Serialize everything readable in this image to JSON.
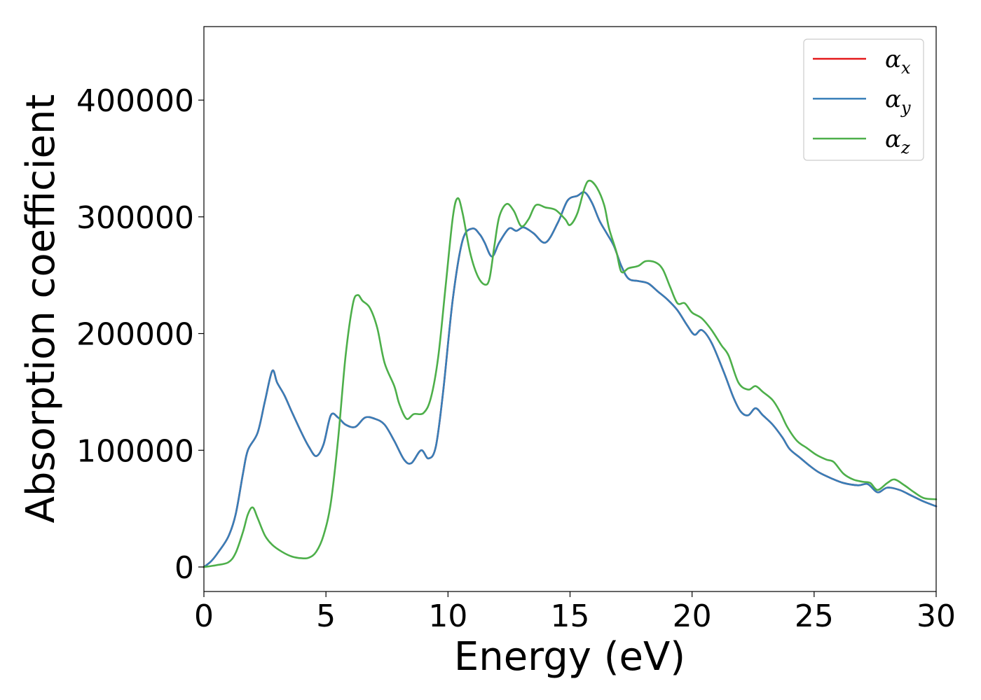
{
  "chart_data": {
    "type": "line",
    "xlabel": "Energy (eV)",
    "ylabel": "Absorption coefficient",
    "xlim": [
      0,
      30
    ],
    "ylim": [
      -21000,
      463000
    ],
    "xticks": [
      0,
      5,
      10,
      15,
      20,
      25,
      30
    ],
    "xtick_labels": [
      "0",
      "5",
      "10",
      "15",
      "20",
      "25",
      "30"
    ],
    "yticks": [
      0,
      100000,
      200000,
      300000,
      400000
    ],
    "ytick_labels": [
      "0",
      "100000",
      "200000",
      "300000",
      "400000"
    ],
    "grid": false,
    "legend_position": "top-right",
    "series": [
      {
        "name": "α_x",
        "symbol": "α",
        "subscript": "x",
        "color": "#e41a1c",
        "points": [
          [
            0,
            0
          ],
          [
            0.3,
            5000
          ],
          [
            0.6,
            13000
          ],
          [
            1.0,
            26000
          ],
          [
            1.3,
            45000
          ],
          [
            1.6,
            80000
          ],
          [
            1.8,
            100000
          ],
          [
            2.2,
            115000
          ],
          [
            2.5,
            142000
          ],
          [
            2.8,
            168000
          ],
          [
            3.0,
            158000
          ],
          [
            3.3,
            147000
          ],
          [
            3.6,
            133000
          ],
          [
            4.0,
            115000
          ],
          [
            4.3,
            103000
          ],
          [
            4.6,
            95000
          ],
          [
            4.9,
            105000
          ],
          [
            5.2,
            130000
          ],
          [
            5.5,
            128000
          ],
          [
            5.8,
            122000
          ],
          [
            6.2,
            120000
          ],
          [
            6.6,
            128000
          ],
          [
            7.0,
            127000
          ],
          [
            7.4,
            122000
          ],
          [
            7.8,
            108000
          ],
          [
            8.2,
            92000
          ],
          [
            8.5,
            89000
          ],
          [
            8.9,
            100000
          ],
          [
            9.2,
            93000
          ],
          [
            9.5,
            103000
          ],
          [
            9.8,
            150000
          ],
          [
            10.2,
            230000
          ],
          [
            10.6,
            280000
          ],
          [
            11.0,
            290000
          ],
          [
            11.3,
            285000
          ],
          [
            11.5,
            278000
          ],
          [
            11.8,
            266000
          ],
          [
            12.1,
            278000
          ],
          [
            12.5,
            290000
          ],
          [
            12.8,
            288000
          ],
          [
            13.1,
            291000
          ],
          [
            13.5,
            286000
          ],
          [
            14.0,
            278000
          ],
          [
            14.5,
            295000
          ],
          [
            14.9,
            314000
          ],
          [
            15.3,
            318000
          ],
          [
            15.6,
            321000
          ],
          [
            15.9,
            312000
          ],
          [
            16.2,
            297000
          ],
          [
            16.5,
            286000
          ],
          [
            16.8,
            275000
          ],
          [
            17.1,
            258000
          ],
          [
            17.4,
            247000
          ],
          [
            17.8,
            245000
          ],
          [
            18.2,
            243000
          ],
          [
            18.6,
            236000
          ],
          [
            19.0,
            229000
          ],
          [
            19.4,
            220000
          ],
          [
            19.8,
            207000
          ],
          [
            20.1,
            199000
          ],
          [
            20.4,
            203000
          ],
          [
            20.8,
            192000
          ],
          [
            21.3,
            167000
          ],
          [
            21.7,
            145000
          ],
          [
            22.0,
            133000
          ],
          [
            22.3,
            130000
          ],
          [
            22.6,
            136000
          ],
          [
            22.9,
            130000
          ],
          [
            23.3,
            122000
          ],
          [
            23.7,
            111000
          ],
          [
            24.0,
            101000
          ],
          [
            24.4,
            94000
          ],
          [
            24.8,
            87000
          ],
          [
            25.2,
            81000
          ],
          [
            25.7,
            76000
          ],
          [
            26.2,
            72000
          ],
          [
            26.8,
            70000
          ],
          [
            27.2,
            71000
          ],
          [
            27.6,
            64000
          ],
          [
            28.0,
            68000
          ],
          [
            28.5,
            66000
          ],
          [
            29.0,
            61000
          ],
          [
            29.5,
            56000
          ],
          [
            30.0,
            52000
          ]
        ]
      },
      {
        "name": "α_y",
        "symbol": "α",
        "subscript": "y",
        "color": "#377eb8",
        "points": [
          [
            0,
            0
          ],
          [
            0.3,
            5000
          ],
          [
            0.6,
            13000
          ],
          [
            1.0,
            26000
          ],
          [
            1.3,
            45000
          ],
          [
            1.6,
            80000
          ],
          [
            1.8,
            100000
          ],
          [
            2.2,
            115000
          ],
          [
            2.5,
            142000
          ],
          [
            2.8,
            168000
          ],
          [
            3.0,
            158000
          ],
          [
            3.3,
            147000
          ],
          [
            3.6,
            133000
          ],
          [
            4.0,
            115000
          ],
          [
            4.3,
            103000
          ],
          [
            4.6,
            95000
          ],
          [
            4.9,
            105000
          ],
          [
            5.2,
            130000
          ],
          [
            5.5,
            128000
          ],
          [
            5.8,
            122000
          ],
          [
            6.2,
            120000
          ],
          [
            6.6,
            128000
          ],
          [
            7.0,
            127000
          ],
          [
            7.4,
            122000
          ],
          [
            7.8,
            108000
          ],
          [
            8.2,
            92000
          ],
          [
            8.5,
            89000
          ],
          [
            8.9,
            100000
          ],
          [
            9.2,
            93000
          ],
          [
            9.5,
            103000
          ],
          [
            9.8,
            150000
          ],
          [
            10.2,
            230000
          ],
          [
            10.6,
            280000
          ],
          [
            11.0,
            290000
          ],
          [
            11.3,
            285000
          ],
          [
            11.5,
            278000
          ],
          [
            11.8,
            266000
          ],
          [
            12.1,
            278000
          ],
          [
            12.5,
            290000
          ],
          [
            12.8,
            288000
          ],
          [
            13.1,
            291000
          ],
          [
            13.5,
            286000
          ],
          [
            14.0,
            278000
          ],
          [
            14.5,
            295000
          ],
          [
            14.9,
            314000
          ],
          [
            15.3,
            318000
          ],
          [
            15.6,
            321000
          ],
          [
            15.9,
            312000
          ],
          [
            16.2,
            297000
          ],
          [
            16.5,
            286000
          ],
          [
            16.8,
            275000
          ],
          [
            17.1,
            258000
          ],
          [
            17.4,
            247000
          ],
          [
            17.8,
            245000
          ],
          [
            18.2,
            243000
          ],
          [
            18.6,
            236000
          ],
          [
            19.0,
            229000
          ],
          [
            19.4,
            220000
          ],
          [
            19.8,
            207000
          ],
          [
            20.1,
            199000
          ],
          [
            20.4,
            203000
          ],
          [
            20.8,
            192000
          ],
          [
            21.3,
            167000
          ],
          [
            21.7,
            145000
          ],
          [
            22.0,
            133000
          ],
          [
            22.3,
            130000
          ],
          [
            22.6,
            136000
          ],
          [
            22.9,
            130000
          ],
          [
            23.3,
            122000
          ],
          [
            23.7,
            111000
          ],
          [
            24.0,
            101000
          ],
          [
            24.4,
            94000
          ],
          [
            24.8,
            87000
          ],
          [
            25.2,
            81000
          ],
          [
            25.7,
            76000
          ],
          [
            26.2,
            72000
          ],
          [
            26.8,
            70000
          ],
          [
            27.2,
            71000
          ],
          [
            27.6,
            64000
          ],
          [
            28.0,
            68000
          ],
          [
            28.5,
            66000
          ],
          [
            29.0,
            61000
          ],
          [
            29.5,
            56000
          ],
          [
            30.0,
            52000
          ]
        ]
      },
      {
        "name": "α_z",
        "symbol": "α",
        "subscript": "z",
        "color": "#4daf4a",
        "points": [
          [
            0,
            0
          ],
          [
            0.5,
            1500
          ],
          [
            1.0,
            4000
          ],
          [
            1.3,
            12000
          ],
          [
            1.6,
            30000
          ],
          [
            1.8,
            45000
          ],
          [
            2.0,
            51000
          ],
          [
            2.2,
            42000
          ],
          [
            2.5,
            27000
          ],
          [
            2.8,
            19000
          ],
          [
            3.2,
            13000
          ],
          [
            3.6,
            9000
          ],
          [
            4.0,
            7500
          ],
          [
            4.3,
            8000
          ],
          [
            4.6,
            13000
          ],
          [
            4.9,
            27000
          ],
          [
            5.2,
            55000
          ],
          [
            5.5,
            110000
          ],
          [
            5.8,
            180000
          ],
          [
            6.1,
            225000
          ],
          [
            6.3,
            233000
          ],
          [
            6.5,
            228000
          ],
          [
            6.8,
            222000
          ],
          [
            7.1,
            205000
          ],
          [
            7.4,
            175000
          ],
          [
            7.8,
            155000
          ],
          [
            8.0,
            140000
          ],
          [
            8.3,
            127000
          ],
          [
            8.6,
            131000
          ],
          [
            9.0,
            132000
          ],
          [
            9.3,
            145000
          ],
          [
            9.6,
            180000
          ],
          [
            9.9,
            240000
          ],
          [
            10.2,
            300000
          ],
          [
            10.4,
            316000
          ],
          [
            10.6,
            303000
          ],
          [
            10.9,
            270000
          ],
          [
            11.2,
            250000
          ],
          [
            11.5,
            242000
          ],
          [
            11.7,
            247000
          ],
          [
            11.9,
            275000
          ],
          [
            12.1,
            300000
          ],
          [
            12.4,
            311000
          ],
          [
            12.7,
            305000
          ],
          [
            13.0,
            292000
          ],
          [
            13.3,
            298000
          ],
          [
            13.6,
            310000
          ],
          [
            14.0,
            308000
          ],
          [
            14.4,
            306000
          ],
          [
            14.8,
            298000
          ],
          [
            15.0,
            293000
          ],
          [
            15.3,
            303000
          ],
          [
            15.6,
            325000
          ],
          [
            15.8,
            331000
          ],
          [
            16.1,
            325000
          ],
          [
            16.4,
            310000
          ],
          [
            16.6,
            290000
          ],
          [
            16.9,
            270000
          ],
          [
            17.1,
            253000
          ],
          [
            17.4,
            256000
          ],
          [
            17.8,
            258000
          ],
          [
            18.1,
            262000
          ],
          [
            18.5,
            261000
          ],
          [
            18.8,
            255000
          ],
          [
            19.1,
            240000
          ],
          [
            19.4,
            226000
          ],
          [
            19.7,
            226000
          ],
          [
            20.0,
            218000
          ],
          [
            20.4,
            213000
          ],
          [
            20.8,
            203000
          ],
          [
            21.2,
            190000
          ],
          [
            21.5,
            181000
          ],
          [
            21.9,
            158000
          ],
          [
            22.3,
            152000
          ],
          [
            22.6,
            155000
          ],
          [
            22.9,
            150000
          ],
          [
            23.3,
            143000
          ],
          [
            23.6,
            133000
          ],
          [
            23.9,
            120000
          ],
          [
            24.3,
            108000
          ],
          [
            24.7,
            102000
          ],
          [
            25.1,
            96000
          ],
          [
            25.5,
            92000
          ],
          [
            25.8,
            90000
          ],
          [
            26.2,
            80000
          ],
          [
            26.6,
            75000
          ],
          [
            27.0,
            73000
          ],
          [
            27.3,
            72000
          ],
          [
            27.6,
            66000
          ],
          [
            28.0,
            72000
          ],
          [
            28.3,
            75000
          ],
          [
            28.7,
            70000
          ],
          [
            29.1,
            64000
          ],
          [
            29.5,
            59000
          ],
          [
            30.0,
            58000
          ]
        ]
      }
    ]
  }
}
